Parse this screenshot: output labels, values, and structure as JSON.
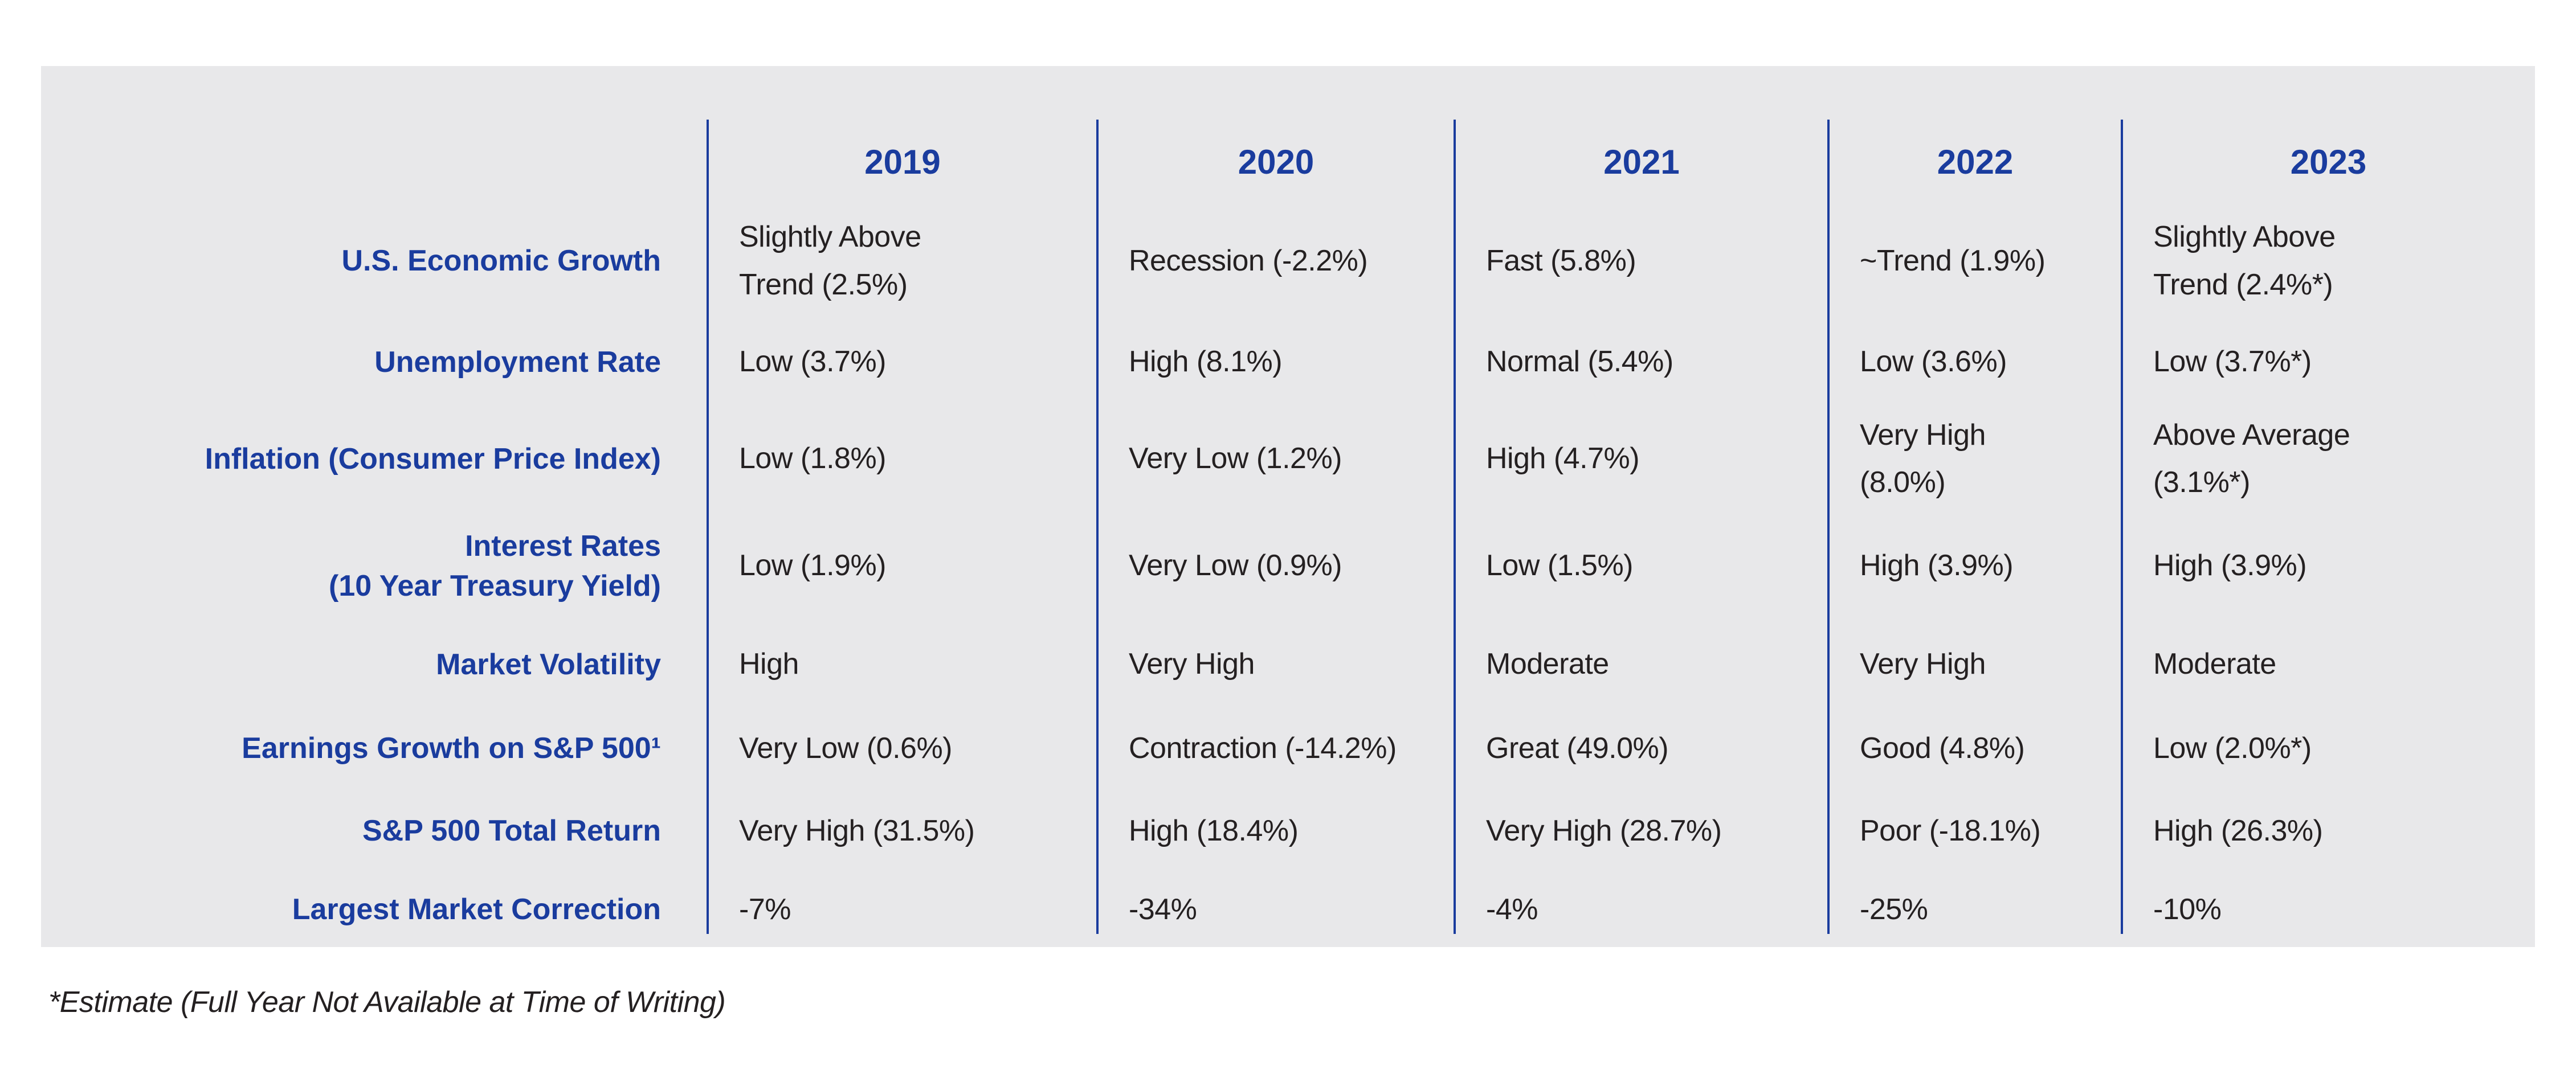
{
  "chart_data": {
    "type": "table",
    "columns": [
      "2019",
      "2020",
      "2021",
      "2022",
      "2023"
    ],
    "rows": [
      {
        "label": "U.S. Economic Growth",
        "values": [
          "Slightly Above\nTrend (2.5%)",
          "Recession (-2.2%)",
          "Fast (5.8%)",
          "~Trend (1.9%)",
          "Slightly Above\nTrend (2.4%*)"
        ]
      },
      {
        "label": "Unemployment Rate",
        "values": [
          "Low (3.7%)",
          "High (8.1%)",
          "Normal (5.4%)",
          "Low (3.6%)",
          "Low (3.7%*)"
        ]
      },
      {
        "label": "Inflation (Consumer Price Index)",
        "values": [
          "Low (1.8%)",
          "Very Low (1.2%)",
          "High (4.7%)",
          "Very High\n(8.0%)",
          "Above Average\n(3.1%*)"
        ]
      },
      {
        "label": "Interest Rates\n(10 Year Treasury Yield)",
        "values": [
          "Low (1.9%)",
          "Very Low (0.9%)",
          "Low (1.5%)",
          "High (3.9%)",
          "High (3.9%)"
        ]
      },
      {
        "label": "Market Volatility",
        "values": [
          "High",
          "Very High",
          "Moderate",
          "Very High",
          "Moderate"
        ]
      },
      {
        "label": "Earnings Growth on S&P 500¹",
        "values": [
          "Very Low (0.6%)",
          "Contraction (-14.2%)",
          "Great (49.0%)",
          "Good (4.8%)",
          "Low (2.0%*)"
        ]
      },
      {
        "label": "S&P 500 Total Return",
        "values": [
          "Very High (31.5%)",
          "High (18.4%)",
          "Very High (28.7%)",
          "Poor (-18.1%)",
          "High (26.3%)"
        ]
      },
      {
        "label": "Largest Market Correction",
        "values": [
          "-7%",
          "-34%",
          "-4%",
          "-25%",
          "-10%"
        ]
      }
    ],
    "footnote": "*Estimate (Full Year Not Available at Time of Writing)",
    "layout": {
      "legend_position": "none",
      "grid": "vertical-separators-only"
    }
  },
  "colors": {
    "accent_blue": "#1a3c9e",
    "panel_background": "#e8e8ea",
    "text_dark": "#242021",
    "page_background": "#ffffff"
  }
}
